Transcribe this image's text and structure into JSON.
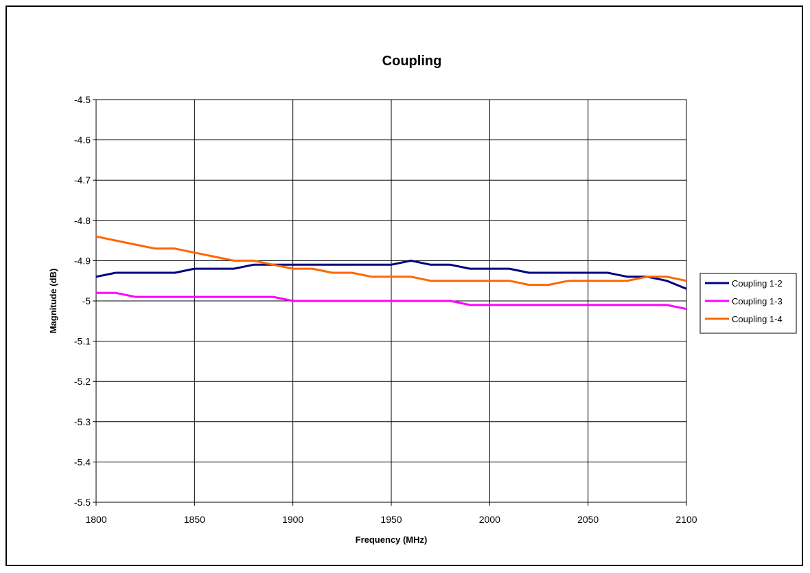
{
  "chart_data": {
    "type": "line",
    "title": "Coupling",
    "xlabel": "Frequency (MHz)",
    "ylabel": "Magnitude (dB)",
    "xlim": [
      1800,
      2100
    ],
    "ylim": [
      -5.5,
      -4.5
    ],
    "x_ticks": [
      "1800",
      "1850",
      "1900",
      "1950",
      "2000",
      "2050",
      "2100"
    ],
    "y_ticks": [
      "-4.5",
      "-4.6",
      "-4.7",
      "-4.8",
      "-4.9",
      "-5",
      "-5.1",
      "-5.2",
      "-5.3",
      "-5.4",
      "-5.5"
    ],
    "grid": true,
    "legend_position": "right",
    "x": [
      1800,
      1810,
      1820,
      1830,
      1840,
      1850,
      1860,
      1870,
      1880,
      1890,
      1900,
      1910,
      1920,
      1930,
      1940,
      1950,
      1960,
      1970,
      1980,
      1990,
      2000,
      2010,
      2020,
      2030,
      2040,
      2050,
      2060,
      2070,
      2080,
      2090,
      2100
    ],
    "series": [
      {
        "name": "Coupling 1-2",
        "color": "#000080",
        "values": [
          -4.94,
          -4.93,
          -4.93,
          -4.93,
          -4.93,
          -4.92,
          -4.92,
          -4.92,
          -4.91,
          -4.91,
          -4.91,
          -4.91,
          -4.91,
          -4.91,
          -4.91,
          -4.91,
          -4.9,
          -4.91,
          -4.91,
          -4.92,
          -4.92,
          -4.92,
          -4.93,
          -4.93,
          -4.93,
          -4.93,
          -4.93,
          -4.94,
          -4.94,
          -4.95,
          -4.97
        ]
      },
      {
        "name": "Coupling 1-3",
        "color": "#ff00ff",
        "values": [
          -4.98,
          -4.98,
          -4.99,
          -4.99,
          -4.99,
          -4.99,
          -4.99,
          -4.99,
          -4.99,
          -4.99,
          -5.0,
          -5.0,
          -5.0,
          -5.0,
          -5.0,
          -5.0,
          -5.0,
          -5.0,
          -5.0,
          -5.01,
          -5.01,
          -5.01,
          -5.01,
          -5.01,
          -5.01,
          -5.01,
          -5.01,
          -5.01,
          -5.01,
          -5.01,
          -5.02
        ]
      },
      {
        "name": "Coupling 1-4",
        "color": "#ff6600",
        "values": [
          -4.84,
          -4.85,
          -4.86,
          -4.87,
          -4.87,
          -4.88,
          -4.89,
          -4.9,
          -4.9,
          -4.91,
          -4.92,
          -4.92,
          -4.93,
          -4.93,
          -4.94,
          -4.94,
          -4.94,
          -4.95,
          -4.95,
          -4.95,
          -4.95,
          -4.95,
          -4.96,
          -4.96,
          -4.95,
          -4.95,
          -4.95,
          -4.95,
          -4.94,
          -4.94,
          -4.95
        ]
      }
    ]
  }
}
